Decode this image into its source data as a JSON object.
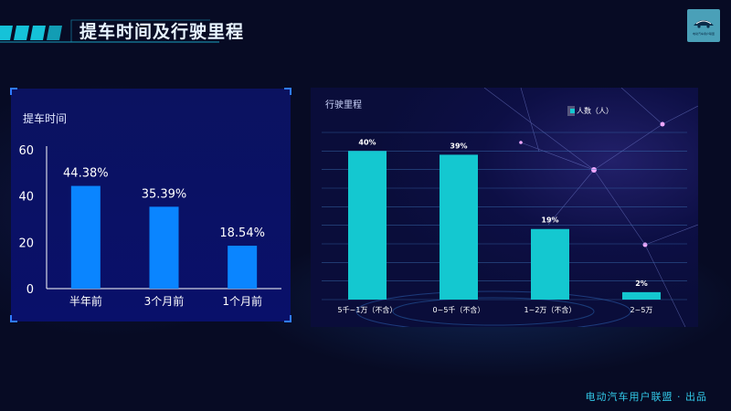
{
  "header": {
    "title": "提车时间及行驶里程",
    "logo_icon": "ev-alliance-logo-icon",
    "logo_text": "电动汽车用户联盟"
  },
  "footer": {
    "text": "电动汽车用户联盟 · 出品"
  },
  "colors": {
    "left_bar": "#0a85ff",
    "right_bar": "#14c8d0",
    "accent": "#32c8e8"
  },
  "chart_data": [
    {
      "type": "bar",
      "title": "提车时间",
      "categories": [
        "半年前",
        "3个月前",
        "1个月前"
      ],
      "values": [
        44.38,
        35.39,
        18.54
      ],
      "value_labels": [
        "44.38%",
        "35.39%",
        "18.54%"
      ],
      "ylim": [
        0,
        60
      ],
      "yticks": [
        0,
        20,
        40,
        60
      ],
      "grid": false
    },
    {
      "type": "bar",
      "title": "行驶里程",
      "categories": [
        "5千~1万（不含）",
        "0~5千（不含）",
        "1~2万（不含）",
        "2~5万"
      ],
      "values": [
        40,
        39,
        19,
        2
      ],
      "value_labels": [
        "40%",
        "39%",
        "19%",
        "2%"
      ],
      "legend": [
        "人数（人）"
      ],
      "legend_position": "top-right",
      "ylim": [
        0,
        45
      ],
      "grid": true
    }
  ]
}
